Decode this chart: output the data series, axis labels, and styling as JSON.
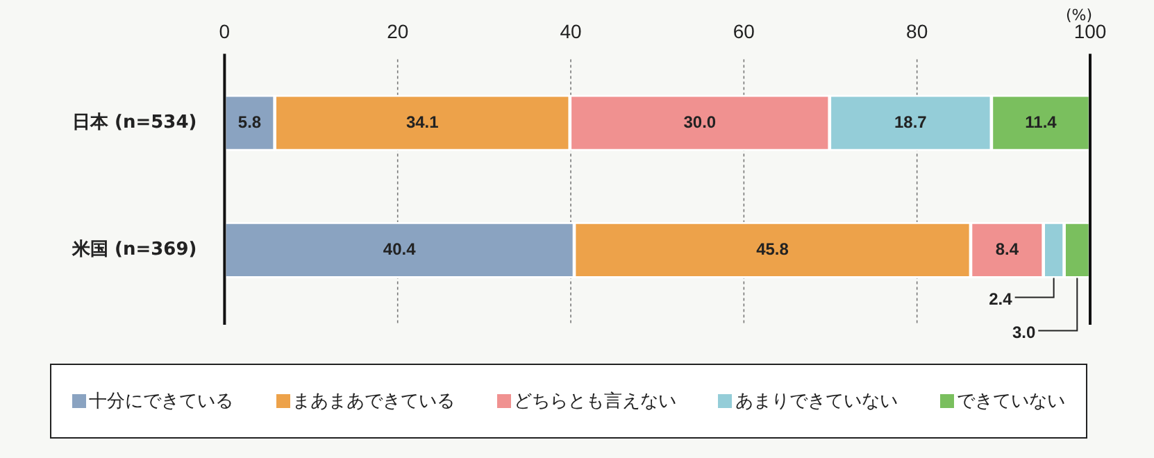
{
  "chart_data": {
    "type": "bar",
    "orientation": "horizontal",
    "stacked": true,
    "xlabel": "(%)",
    "categories": [
      "日本 (n=534)",
      "米国 (n=369)"
    ],
    "series": [
      {
        "name": "十分にできている",
        "color": "#8aa3c1",
        "values": [
          5.8,
          40.4
        ],
        "value_labels": [
          "5.8",
          "40.4"
        ]
      },
      {
        "name": "まあまあできている",
        "color": "#eda24a",
        "values": [
          34.1,
          45.8
        ],
        "value_labels": [
          "34.1",
          "45.8"
        ]
      },
      {
        "name": "どちらとも言えない",
        "color": "#f09190",
        "values": [
          30.0,
          8.4
        ],
        "value_labels": [
          "30.0",
          "8.4"
        ]
      },
      {
        "name": "あまりできていない",
        "color": "#94cdd8",
        "values": [
          18.7,
          2.4
        ],
        "value_labels": [
          "18.7",
          "2.4"
        ]
      },
      {
        "name": "できていない",
        "color": "#7abf5e",
        "values": [
          11.4,
          3.0
        ],
        "value_labels": [
          "11.4",
          "3.0"
        ]
      }
    ],
    "xlim": [
      0,
      100
    ],
    "xticks": [
      0,
      20,
      40,
      60,
      80,
      100
    ],
    "grid": "x",
    "legend": "bottom"
  }
}
